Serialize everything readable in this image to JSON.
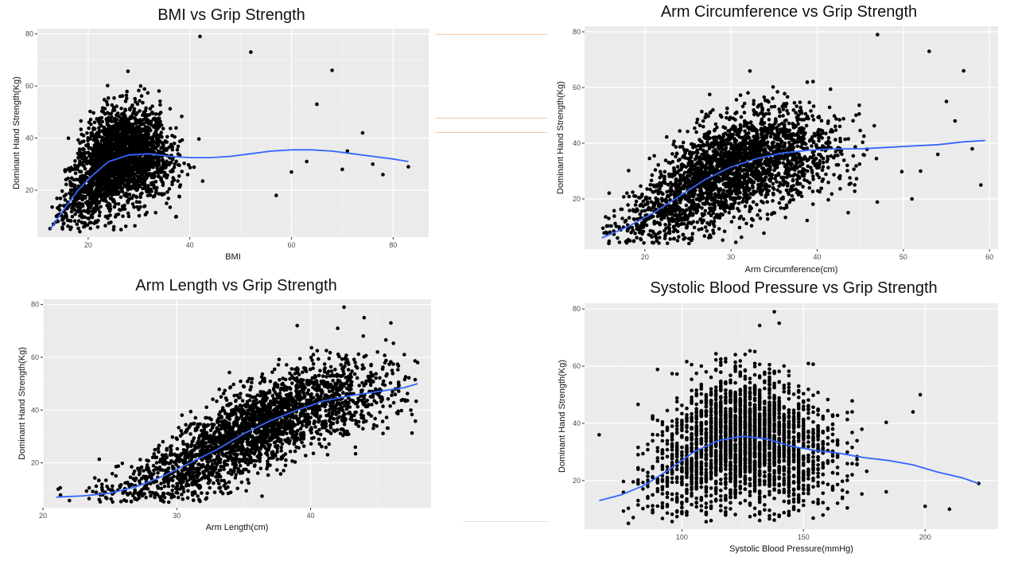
{
  "chart_data": [
    {
      "type": "scatter",
      "title": "BMI vs Grip Strength",
      "xlabel": "BMI",
      "ylabel": "Dominant Hand Strength(Kg)",
      "xlim": [
        10,
        87
      ],
      "ylim": [
        2,
        82
      ],
      "xticks": [
        20,
        40,
        60,
        80
      ],
      "yticks": [
        20,
        40,
        60,
        80
      ],
      "grid": true,
      "legend": "none",
      "cloud": {
        "x_mean": 26,
        "x_sd": 5,
        "x_min": 12,
        "x_max": 52,
        "y_sd": 9
      },
      "outliers": [
        [
          42,
          79
        ],
        [
          68,
          66
        ],
        [
          74,
          42
        ],
        [
          78,
          26
        ],
        [
          83,
          29
        ],
        [
          52,
          73
        ],
        [
          65,
          53
        ],
        [
          70,
          28
        ],
        [
          60,
          27
        ],
        [
          57,
          18
        ],
        [
          63,
          31
        ],
        [
          71,
          35
        ],
        [
          76,
          30
        ]
      ],
      "series": [
        {
          "type": "smooth",
          "color": "#3366ff",
          "x": [
            12.5,
            15,
            18,
            21,
            24,
            28,
            32,
            36,
            40,
            44,
            48,
            52,
            56,
            60,
            64,
            68,
            72,
            76,
            80,
            83
          ],
          "y": [
            5,
            12,
            20,
            26,
            31,
            33.5,
            34,
            33,
            32.5,
            32.5,
            33,
            34,
            35,
            35.5,
            35.5,
            35,
            34,
            33,
            32,
            31
          ]
        }
      ]
    },
    {
      "type": "scatter",
      "title": "Arm Circumference vs Grip Strength",
      "xlabel": "Arm Circumference(cm)",
      "ylabel": "Dominant Hand Strength(Kg)",
      "xlim": [
        13,
        61
      ],
      "ylim": [
        2,
        82
      ],
      "xticks": [
        20,
        30,
        40,
        50,
        60
      ],
      "yticks": [
        20,
        40,
        60,
        80
      ],
      "grid": true,
      "legend": "none",
      "cloud": {
        "x_mean": 30,
        "x_sd": 6,
        "x_min": 15,
        "x_max": 50,
        "y_sd": 9
      },
      "outliers": [
        [
          47,
          79
        ],
        [
          57,
          66
        ],
        [
          59,
          25
        ],
        [
          53,
          73
        ],
        [
          56,
          48
        ],
        [
          55,
          55
        ],
        [
          52,
          30
        ],
        [
          58,
          38
        ],
        [
          54,
          36
        ],
        [
          51,
          20
        ]
      ],
      "series": [
        {
          "type": "smooth",
          "color": "#3366ff",
          "x": [
            15,
            18,
            21,
            24,
            27,
            30,
            33,
            36,
            39,
            42,
            45,
            48,
            51,
            54,
            57,
            59.5
          ],
          "y": [
            6,
            10,
            15,
            21,
            27,
            31.5,
            34.5,
            36.5,
            37.5,
            38,
            38,
            38.5,
            39,
            39.5,
            40.5,
            41
          ]
        }
      ]
    },
    {
      "type": "scatter",
      "title": "Arm Length vs Grip Strength",
      "xlabel": "Arm Length(cm)",
      "ylabel": "Dominant Hand Strength(Kg)",
      "xlim": [
        20,
        49
      ],
      "ylim": [
        3,
        82
      ],
      "xticks": [
        20,
        30,
        40
      ],
      "yticks": [
        20,
        40,
        60,
        80
      ],
      "grid": true,
      "legend": "none",
      "cloud": {
        "x_mean": 36,
        "x_sd": 5,
        "x_min": 21,
        "x_max": 48,
        "y_sd": 8
      },
      "outliers": [
        [
          42.5,
          79
        ],
        [
          39,
          72
        ],
        [
          46,
          73
        ],
        [
          47,
          61
        ],
        [
          48,
          58
        ],
        [
          44,
          75
        ],
        [
          45,
          62
        ]
      ],
      "series": [
        {
          "type": "smooth",
          "color": "#3366ff",
          "x": [
            21,
            23,
            25,
            27,
            29,
            31,
            33,
            35,
            37,
            39,
            41,
            43,
            45,
            47,
            48
          ],
          "y": [
            7,
            7.5,
            8.5,
            11,
            15,
            20,
            25,
            31,
            36,
            40,
            43.5,
            45.5,
            47,
            48.5,
            50
          ]
        }
      ]
    },
    {
      "type": "scatter",
      "title": "Systolic Blood Pressure vs Grip Strength",
      "xlabel": "Systolic Blood Pressure(mmHg)",
      "ylabel": "Dominant Hand Strength(Kg)",
      "xlim": [
        60,
        230
      ],
      "ylim": [
        3,
        82
      ],
      "xticks": [
        100,
        150,
        200
      ],
      "yticks": [
        20,
        40,
        60,
        80
      ],
      "grid": true,
      "legend": "none",
      "cloud": {
        "x_mean": 125,
        "x_sd": 18,
        "x_min": 75,
        "x_max": 200,
        "y_sd": 11,
        "x_step": 2
      },
      "outliers": [
        [
          66,
          36
        ],
        [
          222,
          19
        ],
        [
          210,
          10
        ],
        [
          200,
          11
        ],
        [
          138,
          79
        ],
        [
          140,
          75
        ],
        [
          195,
          44
        ],
        [
          198,
          50
        ]
      ],
      "series": [
        {
          "type": "smooth",
          "color": "#3366ff",
          "x": [
            66,
            75,
            85,
            95,
            105,
            115,
            125,
            135,
            145,
            155,
            165,
            175,
            185,
            195,
            205,
            215,
            222
          ],
          "y": [
            13,
            15,
            18.5,
            24,
            30,
            34,
            35.5,
            34.5,
            32,
            30.5,
            29.5,
            28,
            27,
            25.5,
            23,
            21,
            19
          ]
        }
      ]
    }
  ]
}
